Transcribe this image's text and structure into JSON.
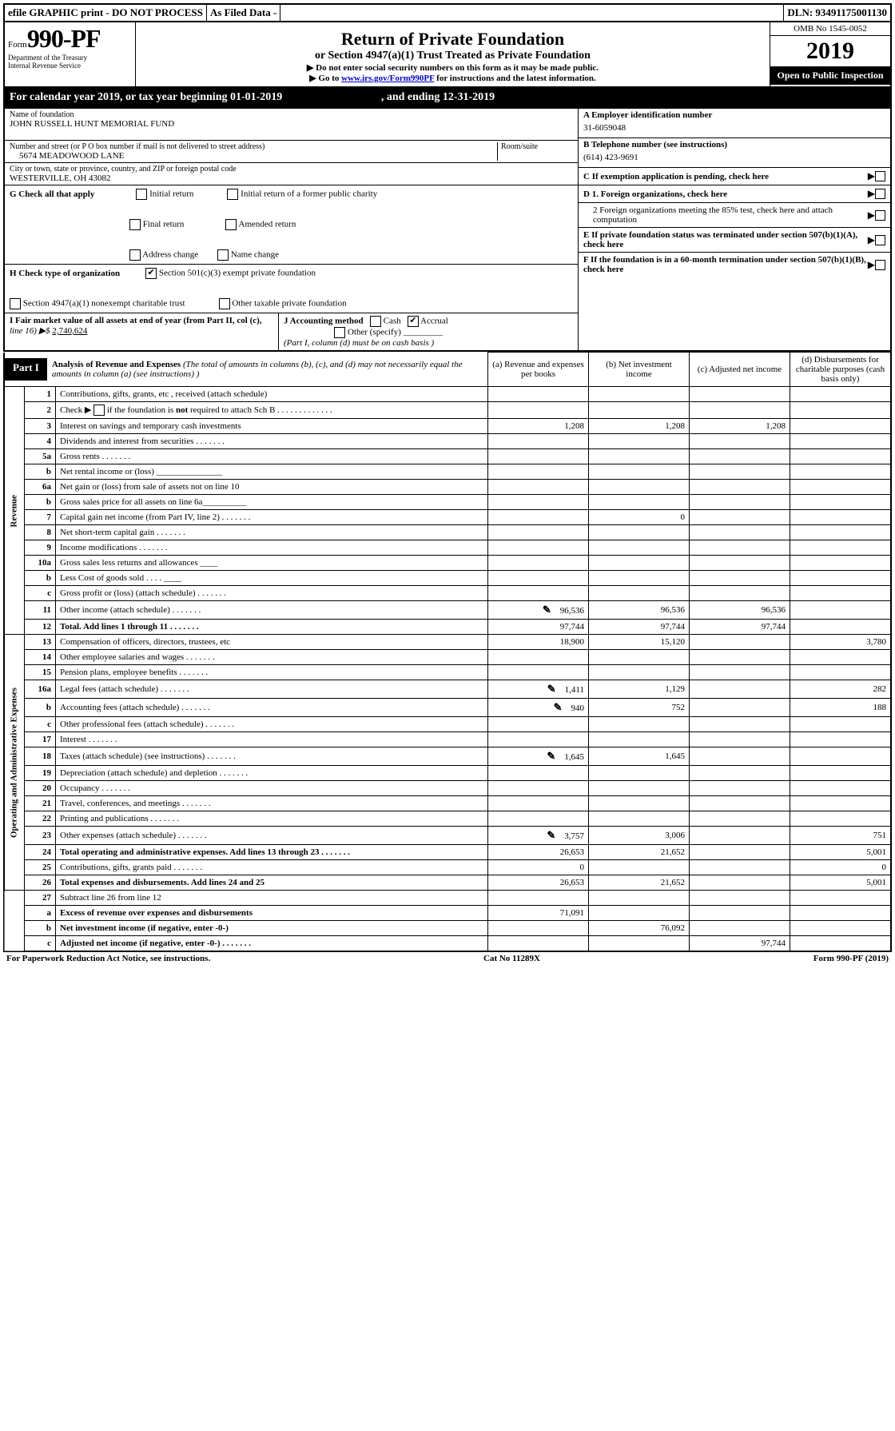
{
  "topbar": {
    "efile": "efile GRAPHIC print - DO NOT PROCESS",
    "asfiled": "As Filed Data -",
    "dln_label": "DLN:",
    "dln": "93491175001130"
  },
  "header": {
    "form_prefix": "Form",
    "form_num": "990-PF",
    "dept1": "Department of the Treasury",
    "dept2": "Internal Revenue Service",
    "title": "Return of Private Foundation",
    "subtitle": "or Section 4947(a)(1) Trust Treated as Private Foundation",
    "note1": "▶ Do not enter social security numbers on this form as it may be made public.",
    "note2_prefix": "▶ Go to ",
    "note2_link": "www.irs.gov/Form990PF",
    "note2_suffix": " for instructions and the latest information.",
    "omb": "OMB No 1545-0052",
    "year": "2019",
    "open": "Open to Public Inspection"
  },
  "calyear": {
    "prefix": "For calendar year 2019, or tax year beginning ",
    "begin": "01-01-2019",
    "mid": " , and ending ",
    "end": "12-31-2019"
  },
  "info": {
    "name_label": "Name of foundation",
    "name": "JOHN RUSSELL HUNT MEMORIAL FUND",
    "addr_label": "Number and street (or P O  box number if mail is not delivered to street address)",
    "addr": "5674 MEADOWOOD LANE",
    "room_label": "Room/suite",
    "city_label": "City or town, state or province, country, and ZIP or foreign postal code",
    "city": "WESTERVILLE, OH  43082",
    "a_label": "A Employer identification number",
    "a_val": "31-6059048",
    "b_label": "B Telephone number (see instructions)",
    "b_val": "(614) 423-9691",
    "c_label": "C If exemption application is pending, check here",
    "d1": "D 1. Foreign organizations, check here",
    "d2": "2 Foreign organizations meeting the 85% test, check here and attach computation",
    "e": "E  If private foundation status was terminated under section 507(b)(1)(A), check here",
    "f": "F  If the foundation is in a 60-month termination under section 507(b)(1)(B), check here"
  },
  "g": {
    "label": "G Check all that apply",
    "opts": [
      "Initial return",
      "Initial return of a former public charity",
      "Final return",
      "Amended return",
      "Address change",
      "Name change"
    ]
  },
  "h": {
    "label": "H Check type of organization",
    "opt1": "Section 501(c)(3) exempt private foundation",
    "opt2": "Section 4947(a)(1) nonexempt charitable trust",
    "opt3": "Other taxable private foundation"
  },
  "i": {
    "label": "I Fair market value of all assets at end of year (from Part II, col  (c),",
    "line": "line 16) ▶$ ",
    "val": "2,740,624"
  },
  "j": {
    "label": "J Accounting method",
    "cash": "Cash",
    "accrual": "Accrual",
    "other": "Other (specify)",
    "note": "(Part I, column (d) must be on cash basis )"
  },
  "part1": {
    "label": "Part I",
    "title": "Analysis of Revenue and Expenses",
    "desc": " (The total of amounts in columns (b), (c), and (d) may not necessarily equal the amounts in column (a) (see instructions) )",
    "col_a": "(a) Revenue and expenses per books",
    "col_b": "(b) Net investment income",
    "col_c": "(c) Adjusted net income",
    "col_d": "(d) Disbursements for charitable purposes (cash basis only)"
  },
  "sidelabels": {
    "revenue": "Revenue",
    "expenses": "Operating and Administrative Expenses"
  },
  "rows": [
    {
      "n": "1",
      "d": "Contributions, gifts, grants, etc , received (attach schedule)",
      "a": "",
      "b": "",
      "c": "",
      "x": ""
    },
    {
      "n": "2",
      "d": "Check ▶ ☐ if the foundation is not required to attach Sch B",
      "a": "",
      "b": "",
      "c": "",
      "x": "",
      "dots": true
    },
    {
      "n": "3",
      "d": "Interest on savings and temporary cash investments",
      "a": "1,208",
      "b": "1,208",
      "c": "1,208",
      "x": ""
    },
    {
      "n": "4",
      "d": "Dividends and interest from securities",
      "a": "",
      "b": "",
      "c": "",
      "x": "",
      "dots": true
    },
    {
      "n": "5a",
      "d": "Gross rents",
      "a": "",
      "b": "",
      "c": "",
      "x": "",
      "dots": true
    },
    {
      "n": "b",
      "d": "Net rental income or (loss)  _______________",
      "a": "",
      "b": "",
      "c": "",
      "x": ""
    },
    {
      "n": "6a",
      "d": "Net gain or (loss) from sale of assets not on line 10",
      "a": "",
      "b": "",
      "c": "",
      "x": ""
    },
    {
      "n": "b",
      "d": "Gross sales price for all assets on line 6a__________",
      "a": "",
      "b": "",
      "c": "",
      "x": ""
    },
    {
      "n": "7",
      "d": "Capital gain net income (from Part IV, line 2)",
      "a": "",
      "b": "0",
      "c": "",
      "x": "",
      "dots": true
    },
    {
      "n": "8",
      "d": "Net short-term capital gain",
      "a": "",
      "b": "",
      "c": "",
      "x": "",
      "dots": true
    },
    {
      "n": "9",
      "d": "Income modifications",
      "a": "",
      "b": "",
      "c": "",
      "x": "",
      "dots": true
    },
    {
      "n": "10a",
      "d": "Gross sales less returns and allowances  ____",
      "a": "",
      "b": "",
      "c": "",
      "x": ""
    },
    {
      "n": "b",
      "d": "Less  Cost of goods sold   .   .   .   .   ____",
      "a": "",
      "b": "",
      "c": "",
      "x": ""
    },
    {
      "n": "c",
      "d": "Gross profit or (loss) (attach schedule)",
      "a": "",
      "b": "",
      "c": "",
      "x": "",
      "dots": true
    },
    {
      "n": "11",
      "d": "Other income (attach schedule)",
      "a": "96,536",
      "b": "96,536",
      "c": "96,536",
      "x": "",
      "icon": true,
      "dots": true
    },
    {
      "n": "12",
      "d": "Total. Add lines 1 through 11",
      "a": "97,744",
      "b": "97,744",
      "c": "97,744",
      "x": "",
      "bold": true,
      "dots": true
    }
  ],
  "exp_rows": [
    {
      "n": "13",
      "d": "Compensation of officers, directors, trustees, etc",
      "a": "18,900",
      "b": "15,120",
      "c": "",
      "x": "3,780"
    },
    {
      "n": "14",
      "d": "Other employee salaries and wages",
      "a": "",
      "b": "",
      "c": "",
      "x": "",
      "dots": true
    },
    {
      "n": "15",
      "d": "Pension plans, employee benefits",
      "a": "",
      "b": "",
      "c": "",
      "x": "",
      "dots": true
    },
    {
      "n": "16a",
      "d": "Legal fees (attach schedule)",
      "a": "1,411",
      "b": "1,129",
      "c": "",
      "x": "282",
      "icon": true,
      "dots": true
    },
    {
      "n": "b",
      "d": "Accounting fees (attach schedule)",
      "a": "940",
      "b": "752",
      "c": "",
      "x": "188",
      "icon": true,
      "dots": true
    },
    {
      "n": "c",
      "d": "Other professional fees (attach schedule)",
      "a": "",
      "b": "",
      "c": "",
      "x": "",
      "dots": true
    },
    {
      "n": "17",
      "d": "Interest",
      "a": "",
      "b": "",
      "c": "",
      "x": "",
      "dots": true
    },
    {
      "n": "18",
      "d": "Taxes (attach schedule) (see instructions)",
      "a": "1,645",
      "b": "1,645",
      "c": "",
      "x": "",
      "icon": true,
      "dots": true
    },
    {
      "n": "19",
      "d": "Depreciation (attach schedule) and depletion",
      "a": "",
      "b": "",
      "c": "",
      "x": "",
      "dots": true
    },
    {
      "n": "20",
      "d": "Occupancy",
      "a": "",
      "b": "",
      "c": "",
      "x": "",
      "dots": true
    },
    {
      "n": "21",
      "d": "Travel, conferences, and meetings",
      "a": "",
      "b": "",
      "c": "",
      "x": "",
      "dots": true
    },
    {
      "n": "22",
      "d": "Printing and publications",
      "a": "",
      "b": "",
      "c": "",
      "x": "",
      "dots": true
    },
    {
      "n": "23",
      "d": "Other expenses (attach schedule)",
      "a": "3,757",
      "b": "3,006",
      "c": "",
      "x": "751",
      "icon": true,
      "dots": true
    },
    {
      "n": "24",
      "d": "Total operating and administrative expenses. Add lines 13 through 23",
      "a": "26,653",
      "b": "21,652",
      "c": "",
      "x": "5,001",
      "bold": true,
      "dots": true
    },
    {
      "n": "25",
      "d": "Contributions, gifts, grants paid",
      "a": "0",
      "b": "",
      "c": "",
      "x": "0",
      "dots": true
    },
    {
      "n": "26",
      "d": "Total expenses and disbursements. Add lines 24 and 25",
      "a": "26,653",
      "b": "21,652",
      "c": "",
      "x": "5,001",
      "bold": true
    }
  ],
  "net_rows": [
    {
      "n": "27",
      "d": "Subtract line 26 from line 12",
      "a": "",
      "b": "",
      "c": "",
      "x": ""
    },
    {
      "n": "a",
      "d": "Excess of revenue over expenses and disbursements",
      "a": "71,091",
      "b": "",
      "c": "",
      "x": "",
      "bold": true
    },
    {
      "n": "b",
      "d": "Net investment income (if negative, enter -0-)",
      "a": "",
      "b": "76,092",
      "c": "",
      "x": "",
      "bold": true
    },
    {
      "n": "c",
      "d": "Adjusted net income (if negative, enter -0-)",
      "a": "",
      "b": "",
      "c": "97,744",
      "x": "",
      "bold": true,
      "dots": true
    }
  ],
  "footer": {
    "left": "For Paperwork Reduction Act Notice, see instructions.",
    "mid": "Cat  No  11289X",
    "right": "Form 990-PF (2019)"
  }
}
